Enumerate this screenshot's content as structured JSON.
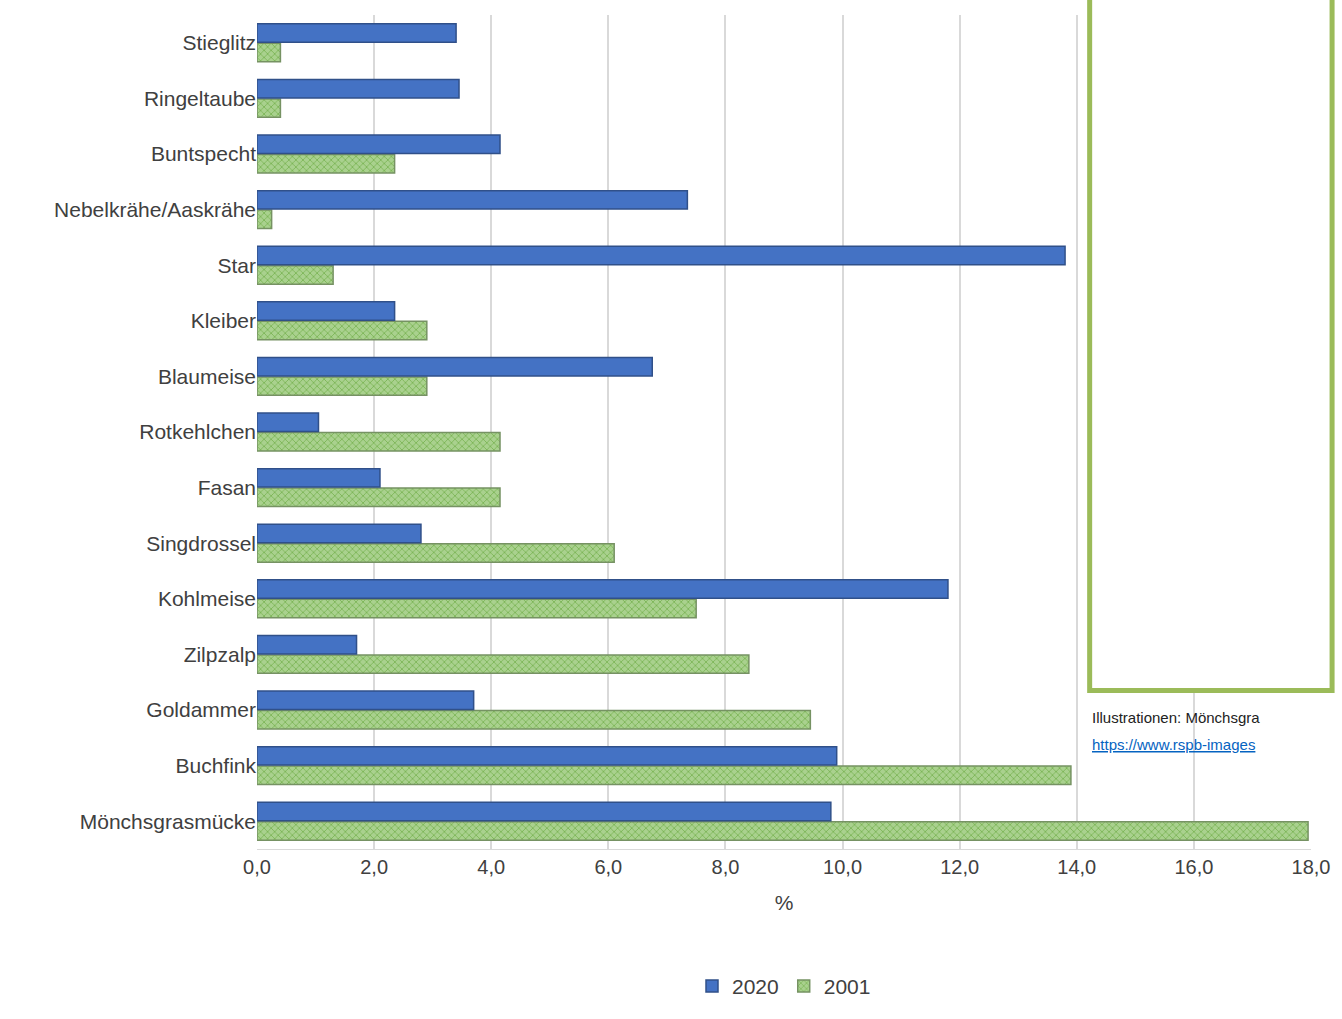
{
  "chart_data": {
    "type": "bar",
    "orientation": "horizontal",
    "xlabel": "%",
    "categories": [
      "Mönchsgrasmücke",
      "Buchfink",
      "Goldammer",
      "Zilpzalp",
      "Kohlmeise",
      "Singdrossel",
      "Fasan",
      "Rotkehlchen",
      "Blaumeise",
      "Kleiber",
      "Star",
      "Nebelkrähe/Aaskrähe",
      "Buntspecht",
      "Ringeltaube",
      "Stieglitz"
    ],
    "series": [
      {
        "name": "2020",
        "color": "#4472c4",
        "values": [
          9.8,
          9.9,
          3.7,
          1.7,
          11.8,
          2.8,
          2.1,
          1.05,
          6.75,
          2.35,
          13.8,
          7.35,
          4.15,
          3.45,
          3.4
        ]
      },
      {
        "name": "2001",
        "color": "#a9d18e",
        "values": [
          17.95,
          13.9,
          9.45,
          8.4,
          7.5,
          6.1,
          4.15,
          4.15,
          2.9,
          2.9,
          1.3,
          0.25,
          2.35,
          0.4,
          0.4
        ]
      }
    ],
    "xlim": [
      0,
      18
    ],
    "xticks": [
      {
        "value": 0,
        "label": "0,0"
      },
      {
        "value": 2,
        "label": "2,0"
      },
      {
        "value": 4,
        "label": "4,0"
      },
      {
        "value": 6,
        "label": "6,0"
      },
      {
        "value": 8,
        "label": "8,0"
      },
      {
        "value": 10,
        "label": "10,0"
      },
      {
        "value": 12,
        "label": "12,0"
      },
      {
        "value": 14,
        "label": "14,0"
      },
      {
        "value": 16,
        "label": "16,0"
      },
      {
        "value": 18,
        "label": "18,0"
      }
    ],
    "grid": true,
    "legend": "bottom",
    "annotations": [
      "Illustrationen: Mönchsgra",
      "https://www.rspb-images"
    ]
  }
}
